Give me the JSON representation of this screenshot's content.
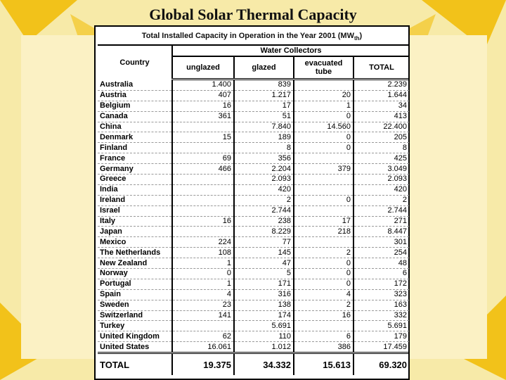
{
  "slide": {
    "title": "Global Solar Thermal Capacity"
  },
  "table": {
    "caption_main": "Total Installed Capacity in Operation in the Year 2001 (MW",
    "caption_sub": "th",
    "caption_end": ")",
    "group_header": "Water Collectors",
    "columns": {
      "country": "Country",
      "unglazed": "unglazed",
      "glazed": "glazed",
      "evacuated": "evacuated tube",
      "total": "TOTAL"
    },
    "rows": [
      [
        "Australia",
        "1.400",
        "839",
        "",
        "2.239"
      ],
      [
        "Austria",
        "407",
        "1.217",
        "20",
        "1.644"
      ],
      [
        "Belgium",
        "16",
        "17",
        "1",
        "34"
      ],
      [
        "Canada",
        "361",
        "51",
        "0",
        "413"
      ],
      [
        "China",
        "",
        "7.840",
        "14.560",
        "22.400"
      ],
      [
        "Denmark",
        "15",
        "189",
        "0",
        "205"
      ],
      [
        "Finland",
        "",
        "8",
        "0",
        "8"
      ],
      [
        "France",
        "69",
        "356",
        "",
        "425"
      ],
      [
        "Germany",
        "466",
        "2.204",
        "379",
        "3.049"
      ],
      [
        "Greece",
        "",
        "2.093",
        "",
        "2.093"
      ],
      [
        "India",
        "",
        "420",
        "",
        "420"
      ],
      [
        "Ireland",
        "",
        "2",
        "0",
        "2"
      ],
      [
        "Israel",
        "",
        "2.744",
        "",
        "2.744"
      ],
      [
        "Italy",
        "16",
        "238",
        "17",
        "271"
      ],
      [
        "Japan",
        "",
        "8.229",
        "218",
        "8.447"
      ],
      [
        "Mexico",
        "224",
        "77",
        "",
        "301"
      ],
      [
        "The Netherlands",
        "108",
        "145",
        "2",
        "254"
      ],
      [
        "New Zealand",
        "1",
        "47",
        "0",
        "48"
      ],
      [
        "Norway",
        "0",
        "5",
        "0",
        "6"
      ],
      [
        "Portugal",
        "1",
        "171",
        "0",
        "172"
      ],
      [
        "Spain",
        "4",
        "316",
        "4",
        "323"
      ],
      [
        "Sweden",
        "23",
        "138",
        "2",
        "163"
      ],
      [
        "Switzerland",
        "141",
        "174",
        "16",
        "332"
      ],
      [
        "Turkey",
        "",
        "5.691",
        "",
        "5.691"
      ],
      [
        "United Kingdom",
        "62",
        "110",
        "6",
        "179"
      ],
      [
        "United States",
        "16.061",
        "1.012",
        "386",
        "17.459"
      ]
    ],
    "total": [
      "TOTAL",
      "19.375",
      "34.332",
      "15.613",
      "69.320"
    ]
  },
  "colors": {
    "background": "#f5e8a0",
    "rays": "#f2c21a"
  }
}
